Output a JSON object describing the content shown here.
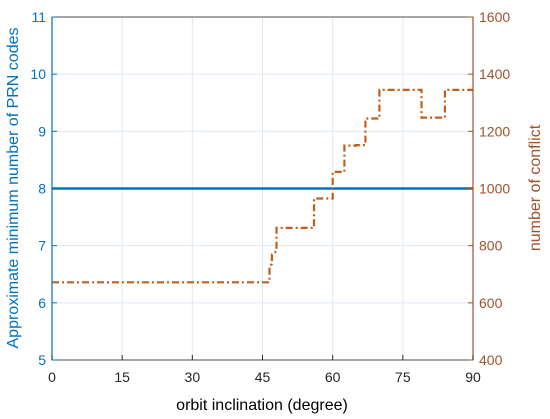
{
  "chart_data": {
    "type": "line",
    "xlabel": "orbit inclination (degree)",
    "ylabel_left": "Approximate minimum number of PRN codes",
    "ylabel_right": "number of conflict",
    "xlim": [
      0,
      90
    ],
    "ylim_left": [
      5,
      11
    ],
    "ylim_right": [
      400,
      1600
    ],
    "xticks": [
      0,
      15,
      30,
      45,
      60,
      75,
      90
    ],
    "yticks_left": [
      5,
      6,
      7,
      8,
      9,
      10,
      11
    ],
    "yticks_right": [
      400,
      600,
      800,
      1000,
      1200,
      1400,
      1600
    ],
    "grid": true,
    "colors": {
      "left_axis": "#0072BD",
      "right_axis": "#A0522D",
      "prn_line": "#0072BD",
      "conflict_line": "#C0601A",
      "grid": "#dfe8f0"
    },
    "series": [
      {
        "axis": "left",
        "style": "solid",
        "x": [
          0,
          90
        ],
        "y": [
          8,
          8
        ]
      },
      {
        "axis": "right",
        "style": "dash-dot",
        "x": [
          0,
          46,
          46.5,
          46.5,
          47,
          47,
          48,
          48,
          56,
          56,
          59,
          59,
          60,
          60,
          62.5,
          62.5,
          65,
          65,
          67,
          67,
          70,
          70,
          79,
          79,
          83,
          83,
          84,
          84,
          90
        ],
        "y": [
          672,
          672,
          672,
          730,
          735,
          770,
          780,
          862,
          862,
          965,
          965,
          965,
          965,
          1058,
          1058,
          1150,
          1150,
          1152,
          1152,
          1245,
          1245,
          1345,
          1345,
          1248,
          1248,
          1248,
          1248,
          1345,
          1345
        ]
      }
    ]
  }
}
